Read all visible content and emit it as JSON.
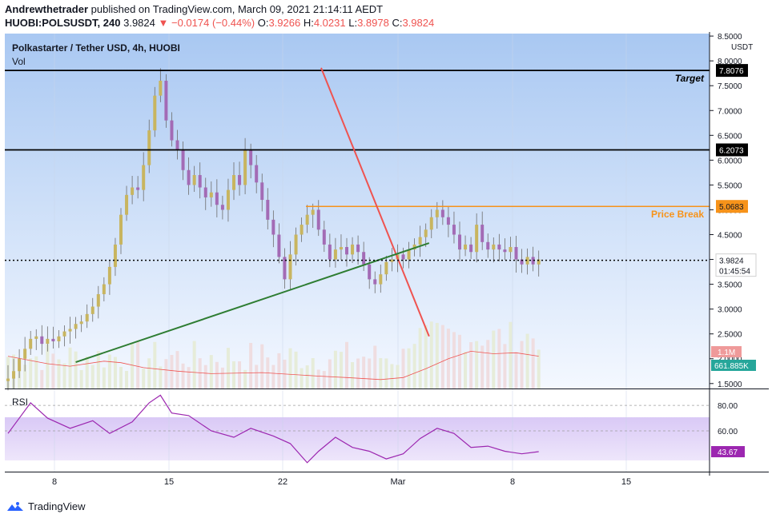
{
  "header": {
    "author": "Andrewthetrader",
    "published_text": "published on TradingView.com, March 09, 2021 21:14:11 AEDT",
    "symbol": "HUOBI:POLSUSDT, 240",
    "last": "3.9824",
    "change": "−0.0174 (−0.44%)",
    "o_label": "O:",
    "o": "3.9266",
    "h_label": "H:",
    "h": "4.0231",
    "l_label": "L:",
    "l": "3.8978",
    "c_label": "C:",
    "c": "3.9824"
  },
  "pane": {
    "title": "Polkastarter / Tether USD, 4h, HUOBI",
    "vol_label": "Vol",
    "currency": "USDT",
    "rsi_label": "RSI"
  },
  "footer": {
    "brand": "TradingView"
  },
  "colors": {
    "up": "#c8b560",
    "down": "#a36bb5",
    "trendline_down": "#ef5350",
    "trendline_up": "#2e7d32",
    "price_break": "#f7931a",
    "rsi": "#9c27b0",
    "vol_ma": "#ef5350",
    "price_bg_top": "#a9c8f2",
    "price_bg_bottom": "#f4f8ff"
  },
  "chart_data": {
    "type": "candlestick",
    "title": "Polkastarter / Tether USD, 4h, HUOBI",
    "x_ticks": [
      "8",
      "15",
      "22",
      "Mar",
      "8",
      "15"
    ],
    "price_ticks": [
      "1.5000",
      "2.0000",
      "2.5000",
      "3.0000",
      "3.5000",
      "4.0000",
      "4.5000",
      "5.0000",
      "5.5000",
      "6.0000",
      "6.5000",
      "7.0000",
      "7.5000",
      "8.0000",
      "8.5000"
    ],
    "price_range": [
      1.4,
      8.55
    ],
    "rsi_ticks": [
      "80.00",
      "60.00"
    ],
    "rsi_range": [
      28,
      92
    ],
    "levels": [
      {
        "name": "Target",
        "value": 7.8076,
        "label": "7.8076",
        "text": "Target"
      },
      {
        "name": "resistance",
        "value": 6.2073,
        "label": "6.2073",
        "text": ""
      },
      {
        "name": "Price Break",
        "value": 5.0683,
        "label": "5.0683",
        "text": "Price Break"
      }
    ],
    "current": {
      "price": 3.9824,
      "price_label": "3.9824",
      "countdown": "01:45:54"
    },
    "volume": {
      "label": "1.1M",
      "ma_label": "661.885K"
    },
    "rsi": {
      "value": 43.67,
      "label": "43.67"
    },
    "trendlines": [
      {
        "name": "descending",
        "from": {
          "day": 17.3,
          "price": 7.86
        },
        "to": {
          "day": 23.9,
          "price": 2.45
        }
      },
      {
        "name": "ascending",
        "from": {
          "day": 2.3,
          "price": 1.93
        },
        "to": {
          "day": 23.9,
          "price": 4.33
        }
      }
    ],
    "price_path": [
      [
        0.0,
        1.6
      ],
      [
        1.0,
        1.75
      ],
      [
        2.0,
        2.0
      ],
      [
        3.0,
        2.2
      ],
      [
        4.0,
        2.4
      ],
      [
        5.0,
        2.45
      ],
      [
        6.0,
        2.3
      ],
      [
        7.0,
        2.4
      ],
      [
        8.0,
        2.35
      ],
      [
        9.0,
        2.45
      ],
      [
        10.0,
        2.55
      ],
      [
        11.0,
        2.6
      ],
      [
        12.0,
        2.7
      ],
      [
        13.0,
        2.75
      ],
      [
        14.0,
        2.9
      ],
      [
        15.0,
        3.05
      ],
      [
        16.0,
        3.3
      ],
      [
        17.0,
        3.5
      ],
      [
        18.0,
        3.85
      ],
      [
        19.0,
        4.3
      ],
      [
        20.0,
        4.9
      ],
      [
        21.0,
        5.3
      ],
      [
        22.0,
        5.45
      ],
      [
        23.0,
        5.4
      ],
      [
        24.0,
        5.9
      ],
      [
        25.0,
        6.6
      ],
      [
        26.0,
        7.3
      ],
      [
        27.0,
        7.6
      ],
      [
        28.0,
        6.8
      ],
      [
        29.0,
        6.4
      ],
      [
        30.0,
        6.2
      ],
      [
        31.0,
        5.8
      ],
      [
        32.0,
        5.5
      ],
      [
        33.0,
        5.7
      ],
      [
        34.0,
        5.45
      ],
      [
        35.0,
        5.25
      ],
      [
        36.0,
        5.35
      ],
      [
        37.0,
        5.1
      ],
      [
        38.0,
        5.0
      ],
      [
        39.0,
        5.4
      ],
      [
        40.0,
        5.7
      ],
      [
        41.0,
        5.5
      ],
      [
        42.0,
        6.2
      ],
      [
        43.0,
        5.9
      ],
      [
        44.0,
        5.55
      ],
      [
        45.0,
        5.2
      ],
      [
        46.0,
        4.8
      ],
      [
        47.0,
        4.5
      ],
      [
        48.0,
        4.05
      ],
      [
        49.0,
        3.6
      ],
      [
        50.0,
        4.1
      ],
      [
        51.0,
        4.5
      ],
      [
        52.0,
        4.7
      ],
      [
        53.0,
        4.9
      ],
      [
        54.0,
        5.0
      ],
      [
        55.0,
        4.6
      ],
      [
        56.0,
        4.3
      ],
      [
        57.0,
        4.0
      ],
      [
        58.0,
        4.2
      ],
      [
        59.0,
        4.25
      ],
      [
        60.0,
        4.1
      ],
      [
        61.0,
        4.3
      ],
      [
        62.0,
        4.15
      ],
      [
        63.0,
        3.9
      ],
      [
        64.0,
        3.6
      ],
      [
        65.0,
        3.5
      ],
      [
        66.0,
        3.7
      ],
      [
        67.0,
        3.95
      ],
      [
        68.0,
        4.0
      ],
      [
        69.0,
        4.1
      ],
      [
        70.0,
        4.0
      ],
      [
        71.0,
        4.2
      ],
      [
        72.0,
        4.3
      ],
      [
        73.0,
        4.45
      ],
      [
        74.0,
        4.6
      ],
      [
        75.0,
        4.85
      ],
      [
        76.0,
        5.0
      ],
      [
        77.0,
        4.85
      ],
      [
        78.0,
        4.7
      ],
      [
        79.0,
        4.5
      ],
      [
        80.0,
        4.2
      ],
      [
        81.0,
        4.3
      ],
      [
        82.0,
        4.15
      ],
      [
        83.0,
        4.7
      ],
      [
        84.0,
        4.35
      ],
      [
        85.0,
        4.2
      ],
      [
        86.0,
        4.3
      ],
      [
        87.0,
        4.2
      ],
      [
        88.0,
        4.15
      ],
      [
        89.0,
        4.25
      ],
      [
        90.0,
        4.0
      ],
      [
        91.0,
        3.9
      ],
      [
        92.0,
        4.05
      ],
      [
        93.0,
        3.9
      ],
      [
        94.0,
        4.0
      ]
    ],
    "vol_ma_path": [
      [
        0.0,
        2.05
      ],
      [
        7.0,
        1.9
      ],
      [
        11.0,
        1.85
      ],
      [
        17.0,
        1.95
      ],
      [
        20.0,
        1.92
      ],
      [
        24.0,
        1.82
      ],
      [
        30.0,
        1.75
      ],
      [
        36.0,
        1.7
      ],
      [
        45.0,
        1.72
      ],
      [
        55.0,
        1.65
      ],
      [
        60.0,
        1.62
      ],
      [
        66.0,
        1.58
      ],
      [
        70.0,
        1.62
      ],
      [
        74.0,
        1.8
      ],
      [
        78.0,
        2.0
      ],
      [
        82.0,
        2.15
      ],
      [
        86.0,
        2.1
      ],
      [
        90.0,
        2.12
      ],
      [
        94.0,
        2.05
      ]
    ],
    "rsi_path": [
      [
        0.0,
        58
      ],
      [
        4.0,
        82
      ],
      [
        7.0,
        70
      ],
      [
        11.0,
        62
      ],
      [
        15.0,
        68
      ],
      [
        18.0,
        58
      ],
      [
        22.0,
        67
      ],
      [
        25.0,
        82
      ],
      [
        27.0,
        88
      ],
      [
        29.0,
        74
      ],
      [
        32.0,
        72
      ],
      [
        36.0,
        60
      ],
      [
        40.0,
        55
      ],
      [
        43.0,
        62
      ],
      [
        47.0,
        56
      ],
      [
        50.0,
        50
      ],
      [
        53.0,
        35
      ],
      [
        55.0,
        44
      ],
      [
        58.0,
        55
      ],
      [
        61.0,
        47
      ],
      [
        64.0,
        44
      ],
      [
        67.0,
        38
      ],
      [
        70.0,
        42
      ],
      [
        73.0,
        54
      ],
      [
        76.0,
        62
      ],
      [
        79.0,
        58
      ],
      [
        82.0,
        47
      ],
      [
        85.0,
        48
      ],
      [
        88.0,
        44
      ],
      [
        91.0,
        42
      ],
      [
        94.0,
        43.67
      ]
    ]
  }
}
